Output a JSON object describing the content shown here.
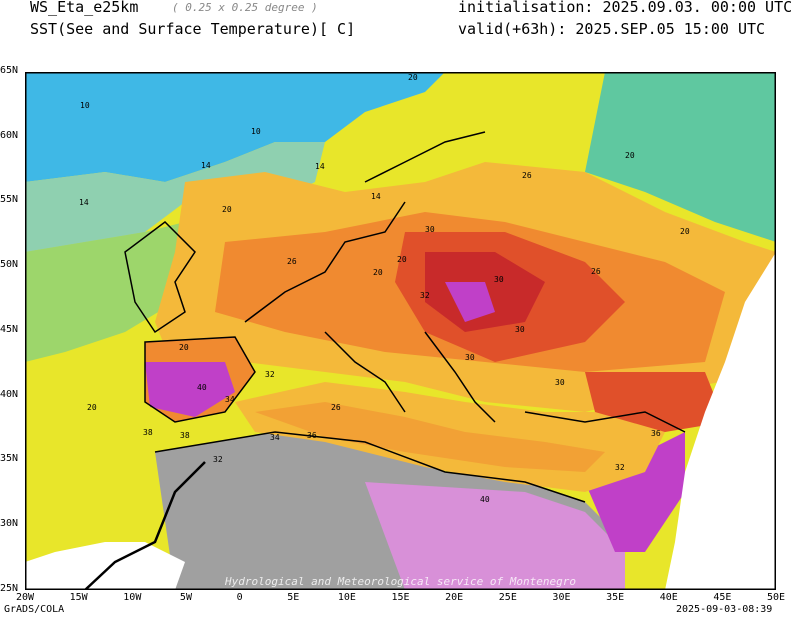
{
  "header": {
    "model": "WS_Eta_e25km",
    "resolution": "( 0.25 x 0.25 degree )",
    "field": "SST(See and Surface Temperature)[ C]",
    "initialisation": "initialisation: 2025.09.03. 00:00 UTC",
    "valid": "valid(+63h): 2025.SEP.05 15:00 UTC"
  },
  "map": {
    "lat_labels": [
      "65N",
      "60N",
      "55N",
      "50N",
      "45N",
      "40N",
      "35N",
      "30N",
      "25N"
    ],
    "lon_labels": [
      "20W",
      "15W",
      "10W",
      "5W",
      "0",
      "5E",
      "10E",
      "15E",
      "20E",
      "25E",
      "30E",
      "35E",
      "40E",
      "45E",
      "50E"
    ],
    "watermark": "Hydrological and Meteorological service of Montenegro",
    "contour_labels": [
      "10",
      "10",
      "14",
      "14",
      "14",
      "14",
      "20",
      "20",
      "20",
      "20",
      "20",
      "20",
      "26",
      "26",
      "26",
      "30",
      "30",
      "30",
      "30",
      "32",
      "32",
      "32",
      "34",
      "34",
      "36",
      "36",
      "38",
      "38",
      "40",
      "40",
      "20",
      "20",
      "26",
      "30",
      "32"
    ],
    "colors": {
      "cold": "#3fb8e6",
      "cool": "#5fc8a0",
      "teal": "#8fd0b0",
      "mild": "#e8e62a",
      "warm": "#f4b93a",
      "hot": "#f08a30",
      "hotter": "#e0502a",
      "extreme": "#c82a2a",
      "magenta": "#c040c8",
      "pink": "#d890d8",
      "land_grey": "#a0a0a0"
    }
  },
  "footer": {
    "left": "GrADS/COLA",
    "right": "2025-09-03-08:39"
  }
}
